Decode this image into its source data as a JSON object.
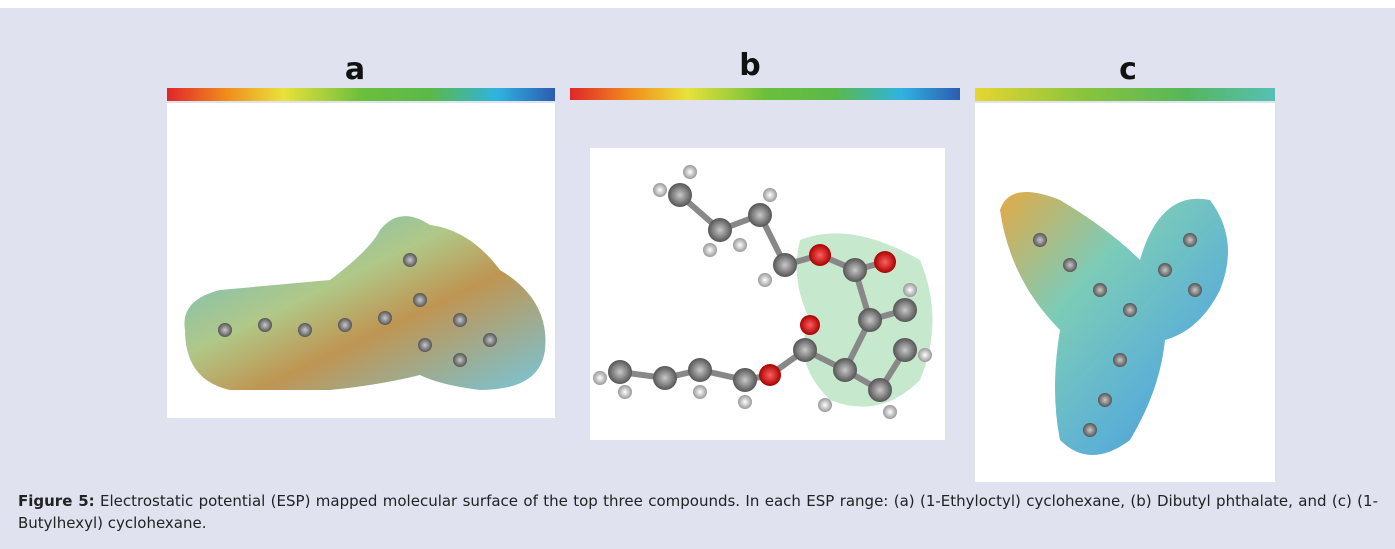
{
  "figure": {
    "panels": [
      {
        "label": "a"
      },
      {
        "label": "b"
      },
      {
        "label": "c"
      }
    ],
    "caption": {
      "label": "Figure 5:",
      "text": "Electrostatic potential (ESP) mapped molecular surface of the top three compounds. In each ESP range: (a) (1-Ethyloctyl) cyclohexane, (b) Dibutyl phthalate, and (c) (1-Butylhexyl) cyclohexane."
    }
  }
}
